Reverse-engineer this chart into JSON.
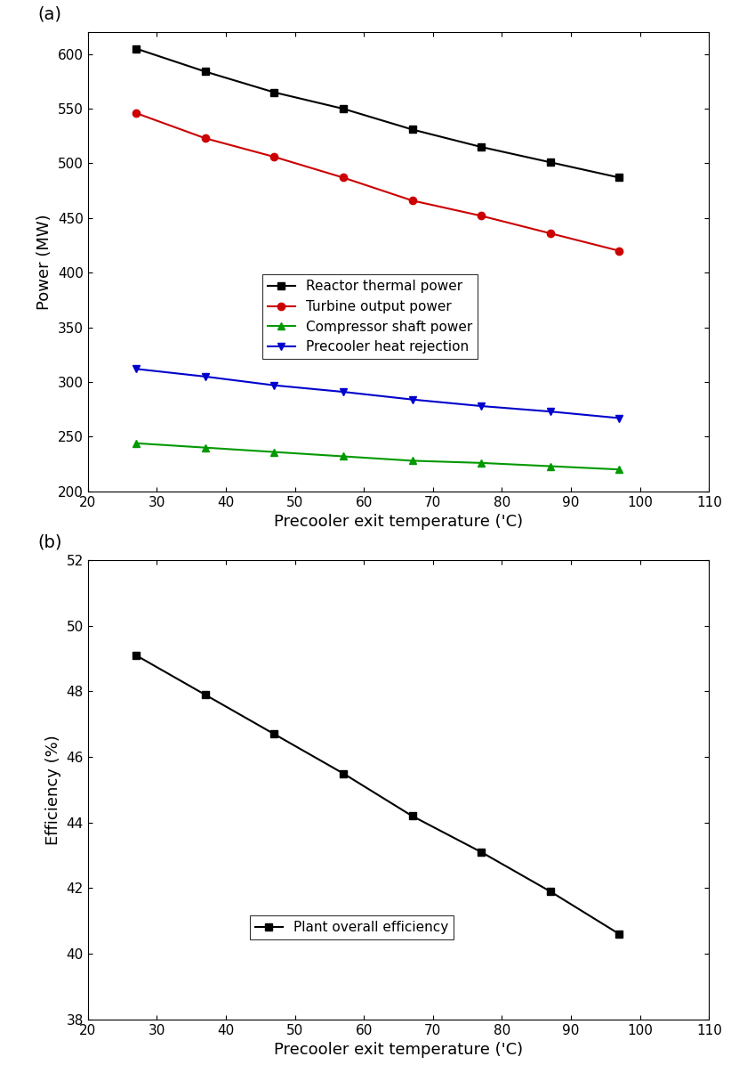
{
  "x_temps": [
    27,
    37,
    47,
    57,
    67,
    77,
    87,
    97
  ],
  "reactor_power": [
    605,
    584,
    565,
    550,
    531,
    515,
    501,
    487
  ],
  "turbine_power": [
    546,
    523,
    506,
    487,
    466,
    452,
    436,
    420
  ],
  "compressor_power": [
    244,
    240,
    236,
    232,
    228,
    226,
    223,
    220
  ],
  "precooler_rejection": [
    312,
    305,
    297,
    291,
    284,
    278,
    273,
    267
  ],
  "efficiency": [
    49.1,
    47.9,
    46.7,
    45.5,
    44.2,
    43.1,
    41.9,
    40.6
  ],
  "reactor_color": "#000000",
  "turbine_color": "#cc0000",
  "compressor_color": "#009900",
  "precooler_color": "#0000cc",
  "efficiency_color": "#000000",
  "subplot_a_ylabel": "Power (MW)",
  "subplot_b_ylabel": "Efficiency (%)",
  "xlabel": "Precooler exit temperature ('C)",
  "legend_a": [
    "Reactor thermal power",
    "Turbine output power",
    "Compressor shaft power",
    "Precooler heat rejection"
  ],
  "legend_b": [
    "Plant overall efficiency"
  ],
  "xlim_a": [
    20,
    110
  ],
  "xlim_b": [
    20,
    110
  ],
  "ylim_a": [
    200,
    620
  ],
  "ylim_b": [
    38,
    52
  ],
  "xticks": [
    20,
    30,
    40,
    50,
    60,
    70,
    80,
    90,
    100,
    110
  ],
  "yticks_a": [
    200,
    250,
    300,
    350,
    400,
    450,
    500,
    550,
    600
  ],
  "yticks_b": [
    38,
    40,
    42,
    44,
    46,
    48,
    50,
    52
  ],
  "label_a": "(a)",
  "label_b": "(b)"
}
